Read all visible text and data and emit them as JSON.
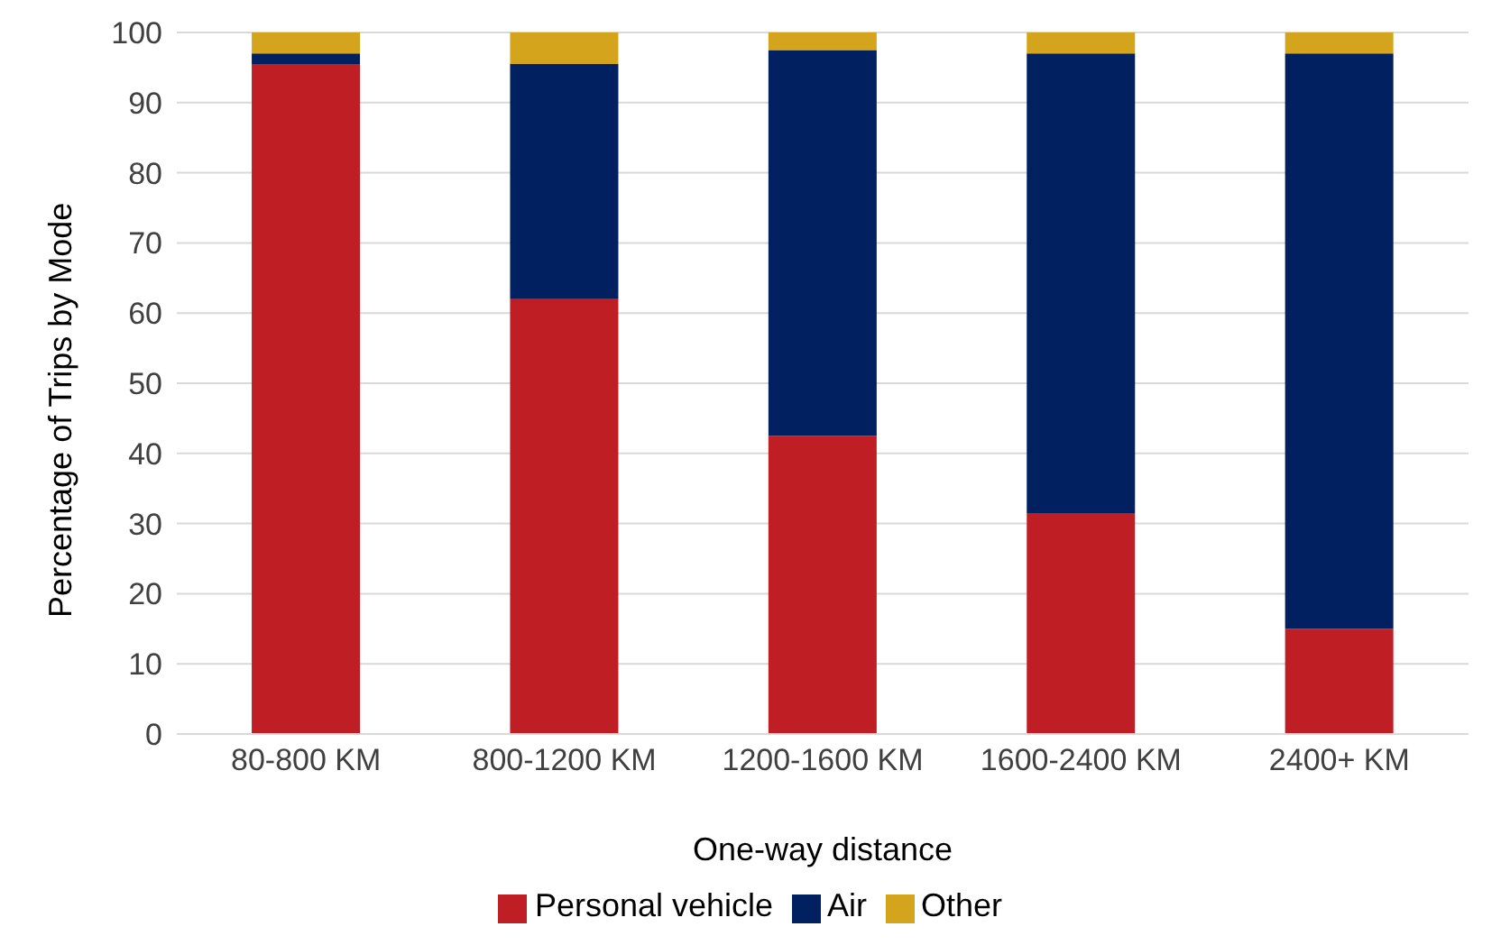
{
  "chart_data": {
    "type": "bar",
    "stacked": true,
    "xlabel": "One-way distance",
    "ylabel": "Percentage of Trips by Mode",
    "categories": [
      "80-800 KM",
      "800-1200 KM",
      "1200-1600 KM",
      "1600-2400 KM",
      "2400+ KM"
    ],
    "series": [
      {
        "name": "Personal vehicle",
        "color": "#be1e24",
        "values": [
          95.5,
          62,
          42.5,
          31.5,
          15
        ]
      },
      {
        "name": "Air",
        "color": "#002060",
        "values": [
          1.5,
          33.5,
          55,
          65.5,
          82
        ]
      },
      {
        "name": "Other",
        "color": "#d4a41c",
        "values": [
          3,
          4.5,
          2.5,
          3,
          3
        ]
      }
    ],
    "ylim": [
      0,
      100
    ],
    "yticks": [
      0,
      10,
      20,
      30,
      40,
      50,
      60,
      70,
      80,
      90,
      100
    ],
    "grid": "y",
    "legend": "bottom"
  }
}
